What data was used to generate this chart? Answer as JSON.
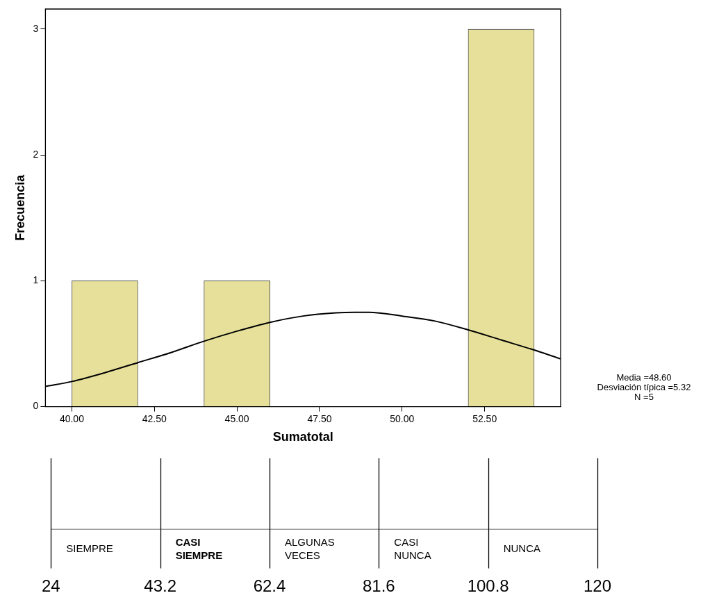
{
  "chart_data": [
    {
      "type": "histogram",
      "xlabel": "Sumatotal",
      "ylabel": "Frecuencia",
      "bins": [
        40,
        42,
        44,
        46,
        48,
        50,
        52,
        54
      ],
      "values": [
        1,
        0,
        1,
        0,
        0,
        0,
        3
      ],
      "color": "#e6e09a",
      "xlim": [
        39.2,
        54.8
      ],
      "xticks": [
        {
          "value": 40,
          "label": "40.00"
        },
        {
          "value": 42.5,
          "label": "42.50"
        },
        {
          "value": 45,
          "label": "45.00"
        },
        {
          "value": 47.5,
          "label": "47.50"
        },
        {
          "value": 50,
          "label": "50.00"
        },
        {
          "value": 52.5,
          "label": "52.50"
        }
      ],
      "ylim": [
        0,
        3.16
      ],
      "yticks": [
        0,
        1,
        2,
        3
      ],
      "series": [
        {
          "type": "line",
          "color": "#000000",
          "x": [
            39.2,
            40,
            41,
            42,
            43,
            44,
            45,
            46,
            47,
            48,
            48.6,
            49,
            50,
            51,
            52,
            53,
            54,
            54.8
          ],
          "values": [
            0.16,
            0.2,
            0.27,
            0.35,
            0.43,
            0.52,
            0.6,
            0.67,
            0.72,
            0.745,
            0.75,
            0.75,
            0.72,
            0.68,
            0.61,
            0.53,
            0.45,
            0.38
          ]
        }
      ],
      "annotations": [
        "Media =48.60",
        "Desviación típica =5.32",
        "N =5"
      ]
    },
    {
      "type": "bar",
      "orientation": "horizontal",
      "categories": [
        null
      ],
      "xlim": [
        24,
        120
      ],
      "xticks": [
        24,
        43.2,
        62.4,
        81.6,
        100.8,
        120
      ],
      "ref_lines": [
        {
          "axis": "x",
          "value": 24
        },
        {
          "axis": "x",
          "value": 43.2
        },
        {
          "axis": "x",
          "value": 62.4
        },
        {
          "axis": "x",
          "value": 81.6
        },
        {
          "axis": "x",
          "value": 100.8
        },
        {
          "axis": "x",
          "value": 120
        }
      ],
      "series": [
        {
          "name": "SIEMPRE",
          "color": "#ffffff",
          "values": [
            19.2
          ],
          "base": [
            24
          ]
        },
        {
          "name": "CASI SIEMPRE",
          "color": "#ffffff",
          "values": [
            19.2
          ],
          "base": [
            43.2
          ]
        },
        {
          "name": "ALGUNAS VECES",
          "color": "#ffffff",
          "values": [
            19.2
          ],
          "base": [
            62.4
          ]
        },
        {
          "name": "CASI NUNCA",
          "color": "#ffffff",
          "values": [
            19.2
          ],
          "base": [
            81.6
          ]
        },
        {
          "name": "NUNCA",
          "color": "#ffffff",
          "values": [
            19.2
          ],
          "base": [
            100.8
          ]
        }
      ]
    }
  ]
}
